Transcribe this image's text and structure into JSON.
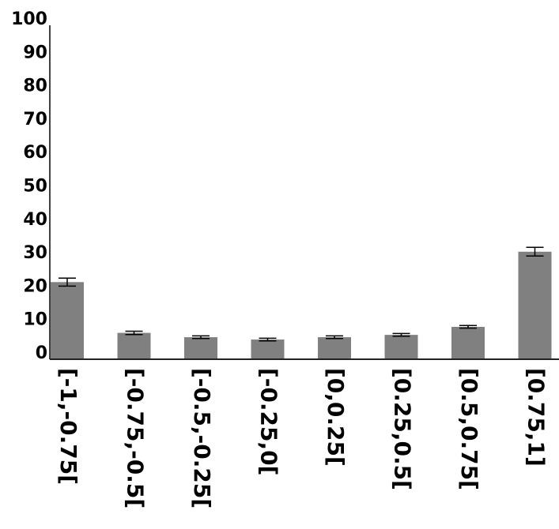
{
  "chart_data": {
    "type": "bar",
    "title": "",
    "xlabel": "",
    "ylabel": "",
    "categories": [
      "[-1,-0.75[",
      "[-0.75,-0.5[",
      "[-0.5,-0.25[",
      "[-0.25,0[",
      "[0,0.25[",
      "[0.25,0.5[",
      "[0.5,0.75[",
      "[0.75,1]"
    ],
    "values": [
      23.1,
      7.9,
      6.6,
      5.9,
      6.6,
      7.3,
      9.7,
      32.2
    ],
    "errors": [
      1.2,
      0.5,
      0.4,
      0.4,
      0.4,
      0.4,
      0.4,
      1.3
    ],
    "ylim": [
      0,
      100
    ],
    "yticks": [
      0,
      10,
      20,
      30,
      40,
      50,
      60,
      70,
      80,
      90,
      100
    ],
    "grid": false,
    "bar_color": "#808080"
  }
}
